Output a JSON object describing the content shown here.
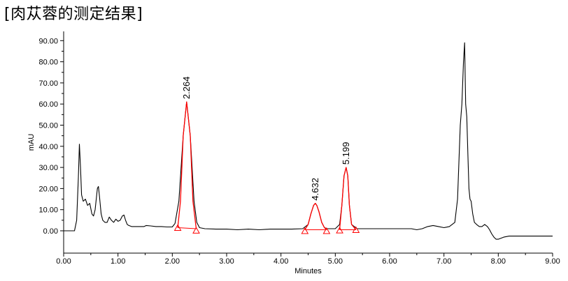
{
  "page_title": "[肉苁蓉的测定结果]",
  "chart_data": {
    "type": "line",
    "title": "",
    "xlabel": "Minutes",
    "ylabel": "mAU",
    "xlim": [
      0,
      9
    ],
    "ylim": [
      -7,
      95
    ],
    "x_ticks": [
      "0.00",
      "1.00",
      "2.00",
      "3.00",
      "4.00",
      "5.00",
      "6.00",
      "7.00",
      "8.00",
      "9.00"
    ],
    "y_ticks": [
      "0.00",
      "10.00",
      "20.00",
      "30.00",
      "40.00",
      "50.00",
      "60.00",
      "70.00",
      "80.00",
      "90.00"
    ],
    "grid": false,
    "series": [
      {
        "color": "#000000",
        "x": [
          0.0,
          0.2,
          0.24,
          0.27,
          0.29,
          0.31,
          0.33,
          0.36,
          0.4,
          0.44,
          0.48,
          0.52,
          0.55,
          0.58,
          0.62,
          0.64,
          0.66,
          0.69,
          0.72,
          0.76,
          0.8,
          0.84,
          0.88,
          0.92,
          0.96,
          1.0,
          1.04,
          1.08,
          1.11,
          1.14,
          1.17,
          1.2,
          1.25,
          1.3,
          1.4,
          1.48,
          1.52,
          1.6,
          1.7,
          1.8,
          1.9,
          2.0,
          2.05,
          2.12,
          2.2,
          2.264,
          2.33,
          2.4,
          2.45,
          2.5,
          2.6,
          2.8,
          3.0,
          3.2,
          3.4,
          3.6,
          3.8,
          4.0,
          4.2,
          4.4,
          4.5,
          4.55,
          4.6,
          4.632,
          4.66,
          4.7,
          4.75,
          4.8,
          4.85,
          4.9,
          5.0,
          5.08,
          5.12,
          5.16,
          5.199,
          5.23,
          5.26,
          5.3,
          5.4,
          5.6,
          5.8,
          6.0,
          6.2,
          6.4,
          6.5,
          6.6,
          6.7,
          6.8,
          6.9,
          7.0,
          7.1,
          7.2,
          7.25,
          7.3,
          7.33,
          7.36,
          7.38,
          7.4,
          7.42,
          7.44,
          7.46,
          7.48,
          7.5,
          7.53,
          7.56,
          7.6,
          7.65,
          7.7,
          7.75,
          7.8,
          7.84,
          7.88,
          7.92,
          7.96,
          8.0,
          8.05,
          8.1,
          8.2,
          8.4,
          8.6,
          8.8,
          9.0
        ],
        "y": [
          0.0,
          0.0,
          5.0,
          25.0,
          41.0,
          30.0,
          17.0,
          14.0,
          15.0,
          12.0,
          13.0,
          8.0,
          7.0,
          10.0,
          20.0,
          21.0,
          16.0,
          8.0,
          5.0,
          4.0,
          4.0,
          6.5,
          5.0,
          4.0,
          5.5,
          4.5,
          5.0,
          7.0,
          7.5,
          5.0,
          3.0,
          2.5,
          2.0,
          2.0,
          2.0,
          2.0,
          2.5,
          2.3,
          2.0,
          2.0,
          1.8,
          1.8,
          3.5,
          14.0,
          45.0,
          61.0,
          45.0,
          14.0,
          4.0,
          1.5,
          1.0,
          0.8,
          0.8,
          0.5,
          0.8,
          0.5,
          0.8,
          0.8,
          0.8,
          1.0,
          3.0,
          8.0,
          12.0,
          13.0,
          12.0,
          9.0,
          4.0,
          1.5,
          1.0,
          1.0,
          1.0,
          3.0,
          12.0,
          26.0,
          30.0,
          26.0,
          12.0,
          3.0,
          1.0,
          1.0,
          1.0,
          1.0,
          1.0,
          1.0,
          0.5,
          1.0,
          2.0,
          2.5,
          2.0,
          1.5,
          2.0,
          4.0,
          15.0,
          50.0,
          60.0,
          80.0,
          89.0,
          60.0,
          54.0,
          37.0,
          20.0,
          15.0,
          14.0,
          8.0,
          4.0,
          3.0,
          2.0,
          2.0,
          3.0,
          2.0,
          0.5,
          -1.5,
          -3.0,
          -4.0,
          -4.0,
          -3.5,
          -3.0,
          -2.5,
          -2.5,
          -2.5,
          -2.5,
          -2.5
        ]
      },
      {
        "color": "#ff0000",
        "x": [
          2.1,
          2.15,
          2.2,
          2.264,
          2.33,
          2.38,
          2.44
        ],
        "y": [
          1.5,
          14.0,
          45.0,
          61.0,
          45.0,
          14.0,
          1.0
        ]
      },
      {
        "color": "#ff0000",
        "x": [
          4.44,
          4.5,
          4.55,
          4.6,
          4.632,
          4.66,
          4.7,
          4.75,
          4.8,
          4.84
        ],
        "y": [
          0.5,
          3.0,
          8.0,
          12.0,
          13.0,
          12.0,
          9.0,
          4.0,
          1.5,
          0.5
        ]
      },
      {
        "color": "#ff0000",
        "x": [
          5.08,
          5.12,
          5.16,
          5.199,
          5.23,
          5.26,
          5.3,
          5.38
        ],
        "y": [
          0.5,
          12.0,
          26.0,
          30.0,
          26.0,
          12.0,
          3.0,
          0.5
        ]
      }
    ],
    "baselines": [
      {
        "color": "#ff0000",
        "x": [
          2.1,
          2.44
        ],
        "y": [
          1.5,
          1.0
        ]
      },
      {
        "color": "#ff0000",
        "x": [
          4.44,
          4.84
        ],
        "y": [
          0.5,
          0.5
        ]
      },
      {
        "color": "#ff0000",
        "x": [
          5.08,
          5.38
        ],
        "y": [
          0.5,
          0.5
        ]
      }
    ],
    "integration_markers": [
      {
        "x": 2.1,
        "y": 1.5
      },
      {
        "x": 2.44,
        "y": 0.2
      },
      {
        "x": 4.44,
        "y": 0.0
      },
      {
        "x": 4.84,
        "y": 0.0
      },
      {
        "x": 5.08,
        "y": 0.3
      },
      {
        "x": 5.38,
        "y": 0.5
      }
    ],
    "annotations": [
      {
        "text": "2.264",
        "x": 2.264,
        "y": 61.0
      },
      {
        "text": "4.632",
        "x": 4.632,
        "y": 13.0
      },
      {
        "text": "5.199",
        "x": 5.199,
        "y": 30.0
      }
    ]
  }
}
